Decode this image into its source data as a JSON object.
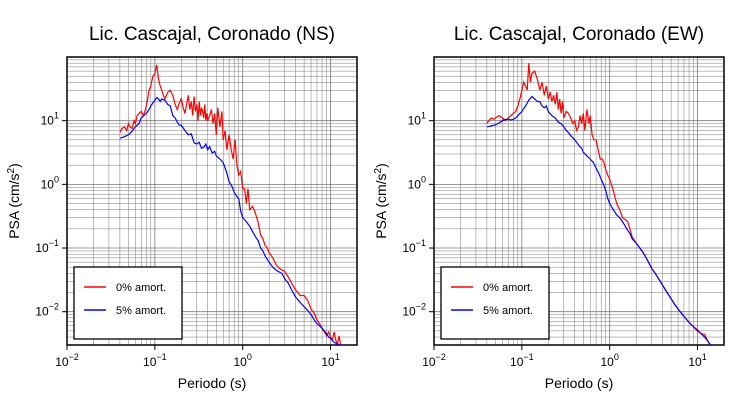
{
  "chart_data": [
    {
      "type": "line",
      "title": "Lic. Cascajal, Coronado (NS)",
      "xlabel": "Periodo (s)",
      "ylabel_base": "PSA (cm/s",
      "ylabel_sup": "2",
      "ylabel_end": ")",
      "xscale": "log",
      "yscale": "log",
      "xlim": [
        0.01,
        20
      ],
      "ylim": [
        0.003,
        100
      ],
      "grid": true,
      "legend_position": "bottom-left",
      "x_ticks": [
        {
          "value": 0.01,
          "base": "10",
          "exp": "−2"
        },
        {
          "value": 0.1,
          "base": "10",
          "exp": "−1"
        },
        {
          "value": 1,
          "base": "10",
          "exp": "0"
        },
        {
          "value": 10,
          "base": "10",
          "exp": "1"
        }
      ],
      "y_ticks": [
        {
          "value": 0.01,
          "base": "10",
          "exp": "−2"
        },
        {
          "value": 0.1,
          "base": "10",
          "exp": "−1"
        },
        {
          "value": 1,
          "base": "10",
          "exp": "0"
        },
        {
          "value": 10,
          "base": "10",
          "exp": "1"
        }
      ],
      "series": [
        {
          "name": "0% amort.",
          "color": "#ff0000",
          "x": [
            0.04,
            0.042,
            0.045,
            0.048,
            0.05,
            0.052,
            0.055,
            0.058,
            0.06,
            0.063,
            0.066,
            0.07,
            0.074,
            0.078,
            0.082,
            0.086,
            0.09,
            0.095,
            0.1,
            0.105,
            0.11,
            0.115,
            0.12,
            0.125,
            0.13,
            0.14,
            0.15,
            0.16,
            0.17,
            0.18,
            0.19,
            0.2,
            0.21,
            0.22,
            0.23,
            0.24,
            0.25,
            0.26,
            0.27,
            0.28,
            0.29,
            0.3,
            0.31,
            0.32,
            0.33,
            0.34,
            0.35,
            0.36,
            0.37,
            0.38,
            0.39,
            0.4,
            0.42,
            0.44,
            0.46,
            0.48,
            0.5,
            0.52,
            0.55,
            0.58,
            0.6,
            0.63,
            0.66,
            0.7,
            0.74,
            0.78,
            0.82,
            0.86,
            0.9,
            0.95,
            1.0,
            1.05,
            1.1,
            1.15,
            1.2,
            1.3,
            1.4,
            1.5,
            1.6,
            1.7,
            1.8,
            1.9,
            2.0,
            2.2,
            2.4,
            2.6,
            2.8,
            3.0,
            3.3,
            3.6,
            4.0,
            4.5,
            5.0,
            5.5,
            6.0,
            6.5,
            7.0,
            7.5,
            8.0,
            8.5,
            9.0,
            9.5,
            10.0,
            10.5,
            11.0,
            11.5,
            12.0,
            12.5,
            13.0
          ],
          "y": [
            6.5,
            7.5,
            8,
            7,
            9,
            8,
            7.5,
            10,
            9,
            12,
            13,
            14,
            12,
            15,
            20,
            30,
            35,
            50,
            55,
            75,
            45,
            35,
            30,
            25,
            22,
            28,
            30,
            25,
            18,
            15,
            19,
            22,
            16,
            13,
            18,
            25,
            15,
            20,
            12,
            24,
            14,
            18,
            10,
            20,
            12,
            16,
            14,
            11,
            18,
            10,
            13,
            10,
            12,
            15,
            9,
            13,
            6,
            16,
            8,
            14,
            5,
            7,
            3.5,
            6,
            3.5,
            2.5,
            5,
            2,
            1.4,
            1.6,
            0.85,
            0.85,
            0.5,
            0.85,
            0.4,
            0.45,
            0.35,
            0.25,
            0.16,
            0.14,
            0.11,
            0.1,
            0.085,
            0.07,
            0.055,
            0.048,
            0.045,
            0.043,
            0.035,
            0.028,
            0.022,
            0.018,
            0.018,
            0.015,
            0.011,
            0.0095,
            0.0075,
            0.0065,
            0.0055,
            0.0048,
            0.0042,
            0.0048,
            0.004,
            0.0036,
            0.0048,
            0.0035,
            0.0032,
            0.0042,
            0.003
          ]
        },
        {
          "name": "5% amort.",
          "color": "#0000ff",
          "x": [
            0.04,
            0.045,
            0.05,
            0.055,
            0.06,
            0.066,
            0.07,
            0.075,
            0.08,
            0.086,
            0.09,
            0.095,
            0.1,
            0.105,
            0.11,
            0.115,
            0.12,
            0.13,
            0.14,
            0.15,
            0.16,
            0.17,
            0.18,
            0.19,
            0.2,
            0.22,
            0.24,
            0.26,
            0.28,
            0.3,
            0.32,
            0.34,
            0.36,
            0.38,
            0.4,
            0.42,
            0.45,
            0.48,
            0.5,
            0.55,
            0.6,
            0.65,
            0.7,
            0.75,
            0.8,
            0.85,
            0.9,
            0.95,
            1.0,
            1.1,
            1.2,
            1.3,
            1.4,
            1.5,
            1.6,
            1.7,
            1.8,
            2.0,
            2.2,
            2.4,
            2.6,
            2.8,
            3.0,
            3.3,
            3.6,
            4.0,
            4.5,
            5.0,
            5.5,
            6.0,
            6.5,
            7.0,
            7.5,
            8.0,
            8.5,
            9.0,
            9.5,
            10.0,
            11.0,
            12.0,
            13.0
          ],
          "y": [
            5.3,
            5.6,
            6,
            6.8,
            8,
            9,
            11,
            12,
            13,
            15,
            17,
            19,
            21,
            23,
            22,
            20,
            22,
            21,
            18,
            17,
            12,
            11,
            9.5,
            8.5,
            8.5,
            7,
            6,
            6.2,
            4.5,
            4.3,
            4.6,
            3.7,
            3.8,
            4.3,
            3.5,
            3.9,
            3.1,
            3.3,
            2.8,
            2.5,
            2.2,
            1.6,
            1.1,
            0.95,
            0.75,
            0.65,
            0.6,
            0.38,
            0.3,
            0.26,
            0.22,
            0.18,
            0.15,
            0.13,
            0.1,
            0.09,
            0.075,
            0.06,
            0.05,
            0.045,
            0.042,
            0.04,
            0.033,
            0.028,
            0.022,
            0.017,
            0.014,
            0.012,
            0.0105,
            0.009,
            0.0075,
            0.0065,
            0.006,
            0.0055,
            0.005,
            0.0045,
            0.004,
            0.0038,
            0.0033,
            0.0031,
            0.003
          ]
        }
      ]
    },
    {
      "type": "line",
      "title": "Lic. Cascajal, Coronado (EW)",
      "xlabel": "Periodo (s)",
      "ylabel_base": "PSA (cm/s",
      "ylabel_sup": "2",
      "ylabel_end": ")",
      "xscale": "log",
      "yscale": "log",
      "xlim": [
        0.01,
        20
      ],
      "ylim": [
        0.003,
        100
      ],
      "grid": true,
      "legend_position": "bottom-left",
      "x_ticks": [
        {
          "value": 0.01,
          "base": "10",
          "exp": "−2"
        },
        {
          "value": 0.1,
          "base": "10",
          "exp": "−1"
        },
        {
          "value": 1,
          "base": "10",
          "exp": "0"
        },
        {
          "value": 10,
          "base": "10",
          "exp": "1"
        }
      ],
      "y_ticks": [
        {
          "value": 0.01,
          "base": "10",
          "exp": "−2"
        },
        {
          "value": 0.1,
          "base": "10",
          "exp": "−1"
        },
        {
          "value": 1,
          "base": "10",
          "exp": "0"
        },
        {
          "value": 10,
          "base": "10",
          "exp": "1"
        }
      ],
      "series": [
        {
          "name": "0% amort.",
          "color": "#ff0000",
          "x": [
            0.04,
            0.042,
            0.045,
            0.048,
            0.05,
            0.055,
            0.06,
            0.065,
            0.07,
            0.075,
            0.08,
            0.085,
            0.09,
            0.095,
            0.1,
            0.105,
            0.11,
            0.115,
            0.12,
            0.125,
            0.13,
            0.14,
            0.15,
            0.16,
            0.17,
            0.18,
            0.19,
            0.2,
            0.21,
            0.22,
            0.23,
            0.24,
            0.25,
            0.26,
            0.27,
            0.28,
            0.29,
            0.3,
            0.32,
            0.34,
            0.36,
            0.38,
            0.4,
            0.42,
            0.44,
            0.46,
            0.48,
            0.5,
            0.52,
            0.55,
            0.58,
            0.6,
            0.63,
            0.66,
            0.7,
            0.74,
            0.78,
            0.82,
            0.86,
            0.9,
            0.95,
            1.0,
            1.1,
            1.2,
            1.3,
            1.4,
            1.5,
            1.6,
            1.7,
            1.8,
            2.0,
            2.2,
            2.4,
            2.6,
            2.8,
            3.0,
            3.3,
            3.6,
            4.0,
            4.5,
            5.0,
            5.5,
            6.0,
            7.0,
            8.0,
            9.0,
            10.0,
            11.0,
            12.0,
            13.0,
            14.0
          ],
          "y": [
            9,
            10,
            11,
            10.5,
            11,
            12,
            11,
            10,
            11,
            12,
            13,
            14,
            17,
            22,
            30,
            40,
            35,
            30,
            80,
            40,
            55,
            60,
            45,
            30,
            40,
            25,
            35,
            22,
            28,
            20,
            25,
            18,
            28,
            15,
            22,
            13,
            20,
            11,
            14,
            13,
            11,
            9,
            10,
            7,
            8,
            12,
            9,
            13,
            7,
            15,
            9,
            12,
            6,
            5,
            5,
            3.5,
            2.5,
            2.5,
            2.2,
            1.7,
            1.4,
            1.2,
            0.8,
            0.5,
            0.4,
            0.3,
            0.28,
            0.26,
            0.2,
            0.15,
            0.12,
            0.1,
            0.085,
            0.07,
            0.058,
            0.048,
            0.04,
            0.033,
            0.026,
            0.02,
            0.016,
            0.013,
            0.011,
            0.0085,
            0.0068,
            0.0058,
            0.0052,
            0.0045,
            0.0044,
            0.0035,
            0.003
          ]
        },
        {
          "name": "5% amort.",
          "color": "#0000ff",
          "x": [
            0.04,
            0.045,
            0.05,
            0.055,
            0.06,
            0.065,
            0.07,
            0.075,
            0.08,
            0.085,
            0.09,
            0.095,
            0.1,
            0.11,
            0.12,
            0.13,
            0.14,
            0.15,
            0.16,
            0.17,
            0.18,
            0.19,
            0.2,
            0.22,
            0.24,
            0.26,
            0.28,
            0.3,
            0.32,
            0.34,
            0.36,
            0.38,
            0.4,
            0.42,
            0.45,
            0.48,
            0.5,
            0.55,
            0.6,
            0.65,
            0.7,
            0.75,
            0.8,
            0.85,
            0.9,
            0.95,
            1.0,
            1.1,
            1.2,
            1.3,
            1.4,
            1.5,
            1.6,
            1.7,
            1.8,
            2.0,
            2.2,
            2.4,
            2.6,
            2.8,
            3.0,
            3.3,
            3.6,
            4.0,
            4.5,
            5.0,
            5.5,
            6.0,
            7.0,
            8.0,
            9.0,
            10.0,
            11.0,
            12.0,
            13.0,
            14.0
          ],
          "y": [
            8,
            8.3,
            8.6,
            9.2,
            10,
            10.5,
            10.5,
            10.3,
            10.5,
            11,
            12,
            13,
            14,
            17,
            21,
            24,
            22,
            20,
            20,
            17,
            16,
            17,
            14,
            12,
            11,
            9.5,
            9,
            8,
            7,
            6.5,
            5.8,
            5.4,
            5,
            4.6,
            4,
            3.7,
            3.2,
            2.8,
            2.5,
            2.2,
            1.8,
            1.5,
            1.2,
            1,
            0.8,
            0.6,
            0.5,
            0.4,
            0.33,
            0.3,
            0.26,
            0.22,
            0.19,
            0.17,
            0.14,
            0.12,
            0.1,
            0.085,
            0.07,
            0.058,
            0.048,
            0.04,
            0.033,
            0.026,
            0.02,
            0.016,
            0.013,
            0.011,
            0.0085,
            0.0068,
            0.0058,
            0.005,
            0.0045,
            0.004,
            0.0035,
            0.003
          ]
        }
      ]
    }
  ]
}
